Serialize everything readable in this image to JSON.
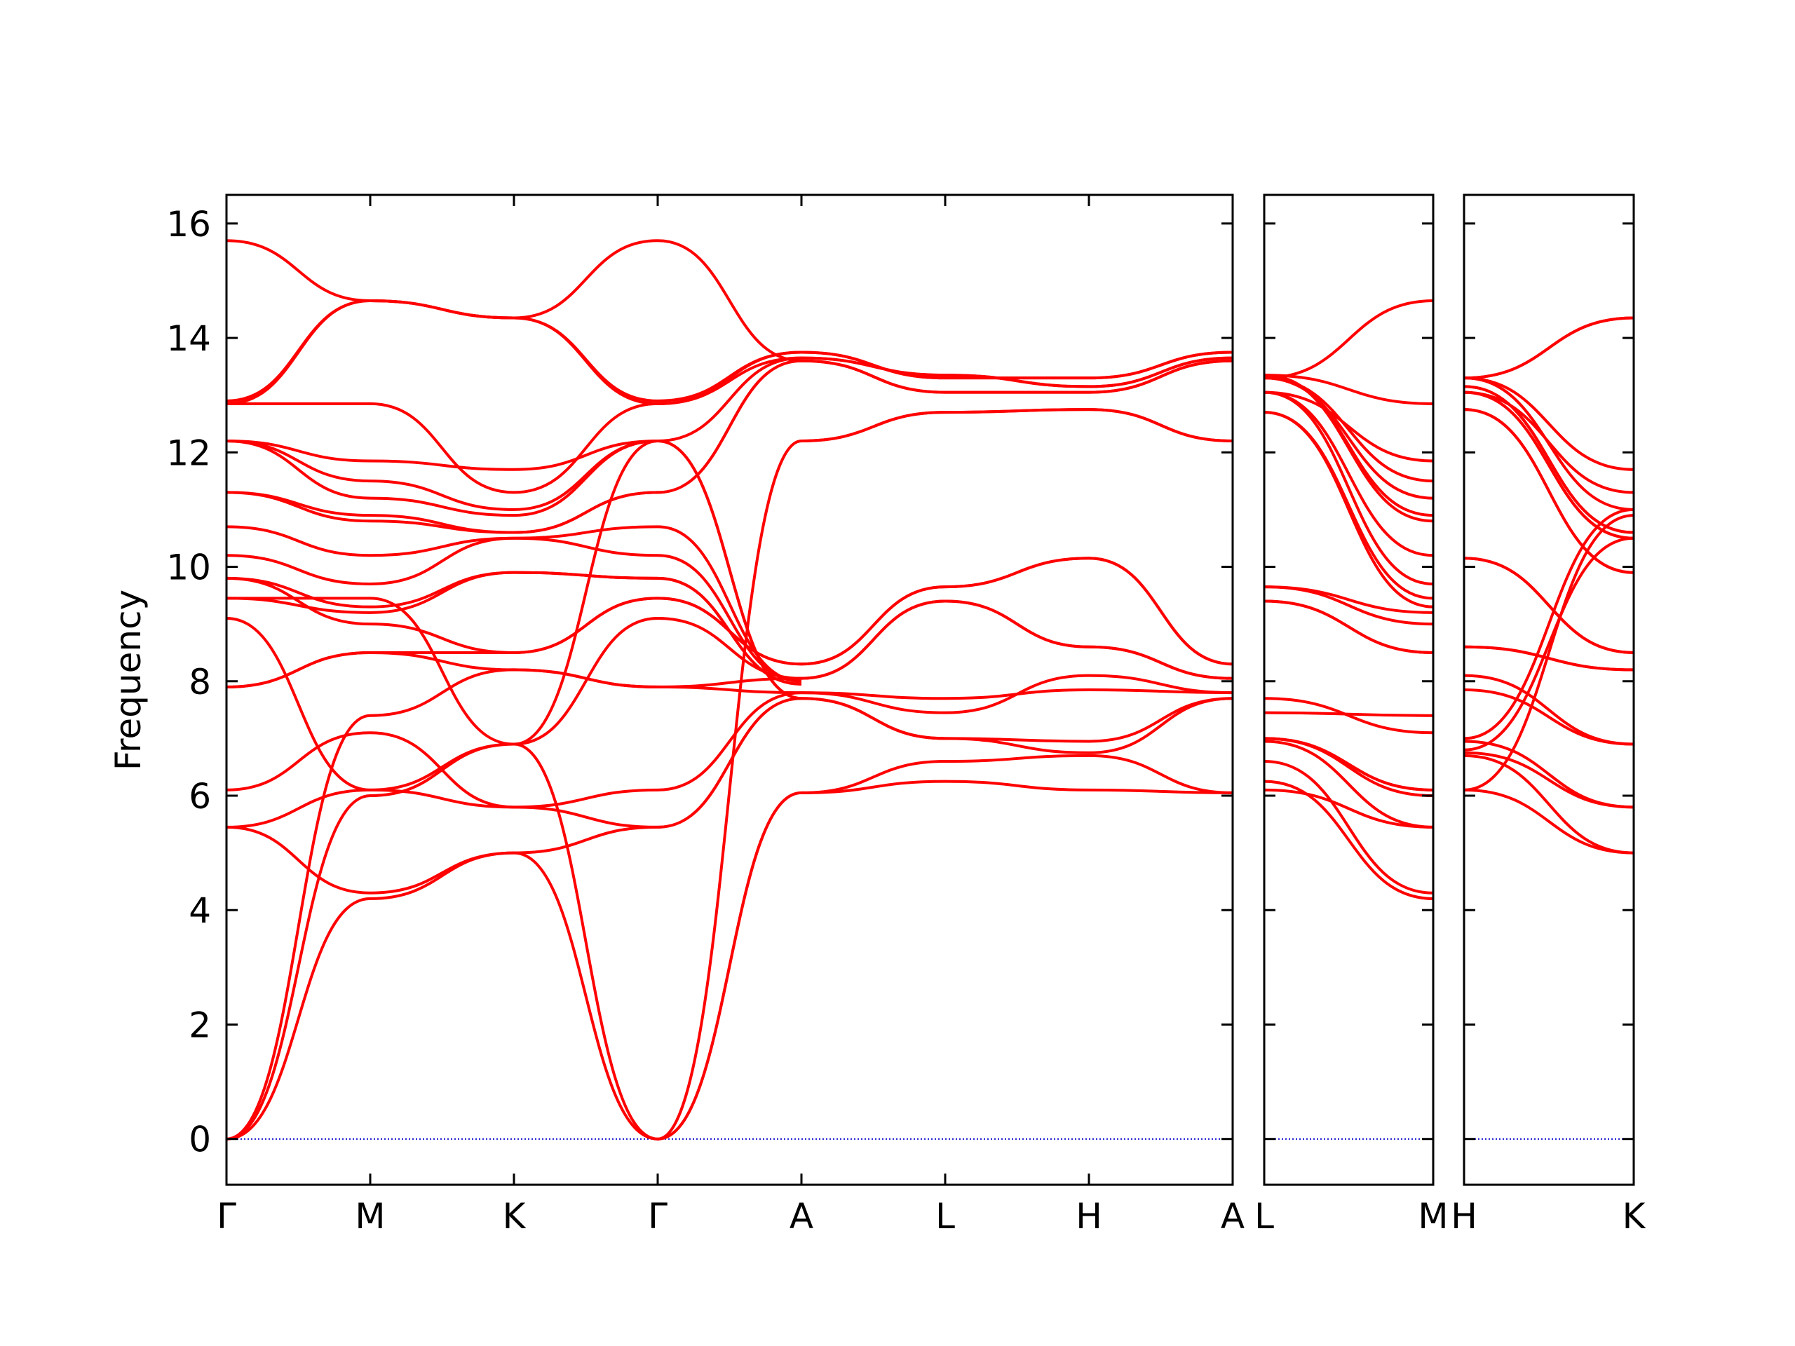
{
  "chart_data": {
    "type": "line",
    "ylabel": "Frequency",
    "ylim": [
      -0.8,
      16.5
    ],
    "yticks": [
      0,
      2,
      4,
      6,
      8,
      10,
      12,
      14,
      16
    ],
    "colors": {
      "bands": "#ff0000",
      "zero_line": "#0000cc",
      "axes": "#000000"
    },
    "grid": false,
    "panels": [
      {
        "xticks": [
          "Γ",
          "M",
          "K",
          "Γ",
          "A",
          "L",
          "H",
          "A"
        ],
        "segments": [
          {
            "from": "Γ",
            "to": "M",
            "bands": [
              [
                0,
                4.2
              ],
              [
                0,
                6.0
              ],
              [
                0,
                7.4
              ],
              [
                5.45,
                4.3
              ],
              [
                5.45,
                6.1
              ],
              [
                6.1,
                7.1
              ],
              [
                7.9,
                8.5
              ],
              [
                7.9,
                8.5
              ],
              [
                9.1,
                6.1
              ],
              [
                9.45,
                9.45
              ],
              [
                9.45,
                9.2
              ],
              [
                9.8,
                9.0
              ],
              [
                9.8,
                9.3
              ],
              [
                10.2,
                9.7
              ],
              [
                10.7,
                10.2
              ],
              [
                11.3,
                10.9
              ],
              [
                11.3,
                10.8
              ],
              [
                12.2,
                11.2
              ],
              [
                12.2,
                11.5
              ],
              [
                12.2,
                11.85
              ],
              [
                12.85,
                12.85
              ],
              [
                12.85,
                14.65
              ],
              [
                12.9,
                14.65
              ],
              [
                15.7,
                14.65
              ]
            ]
          },
          {
            "from": "M",
            "to": "K",
            "bands": [
              [
                4.2,
                5.0
              ],
              [
                4.3,
                5.0
              ],
              [
                6.0,
                6.9
              ],
              [
                6.1,
                6.9
              ],
              [
                6.1,
                5.8
              ],
              [
                7.1,
                5.8
              ],
              [
                7.4,
                8.2
              ],
              [
                8.5,
                8.2
              ],
              [
                8.5,
                8.5
              ],
              [
                9.0,
                8.5
              ],
              [
                9.2,
                9.9
              ],
              [
                9.3,
                9.9
              ],
              [
                9.45,
                6.9
              ],
              [
                9.7,
                10.5
              ],
              [
                10.2,
                10.5
              ],
              [
                10.9,
                10.6
              ],
              [
                10.8,
                10.6
              ],
              [
                11.2,
                10.9
              ],
              [
                11.5,
                11.0
              ],
              [
                11.85,
                11.7
              ],
              [
                12.85,
                11.3
              ],
              [
                14.65,
                14.35
              ],
              [
                14.65,
                14.35
              ],
              [
                14.65,
                14.35
              ]
            ]
          },
          {
            "from": "K",
            "to": "Γ",
            "bands": [
              [
                5.0,
                0
              ],
              [
                5.0,
                5.45
              ],
              [
                6.9,
                0
              ],
              [
                6.9,
                9.1
              ],
              [
                5.8,
                5.45
              ],
              [
                5.8,
                6.1
              ],
              [
                8.2,
                7.9
              ],
              [
                8.2,
                7.9
              ],
              [
                8.5,
                9.45
              ],
              [
                8.5,
                9.45
              ],
              [
                9.9,
                9.8
              ],
              [
                9.9,
                9.8
              ],
              [
                6.9,
                12.2
              ],
              [
                10.5,
                10.2
              ],
              [
                10.5,
                10.7
              ],
              [
                10.6,
                11.3
              ],
              [
                10.6,
                11.3
              ],
              [
                10.9,
                12.2
              ],
              [
                11.0,
                12.2
              ],
              [
                11.7,
                12.2
              ],
              [
                11.3,
                12.85
              ],
              [
                14.35,
                12.85
              ],
              [
                14.35,
                12.9
              ],
              [
                14.35,
                15.7
              ]
            ]
          },
          {
            "from": "Γ",
            "to": "A",
            "bands": [
              [
                0,
                6.05
              ],
              [
                0,
                6.05
              ],
              [
                0,
                12.2
              ],
              [
                5.45,
                7.7
              ],
              [
                5.45,
                7.7
              ],
              [
                6.1,
                7.8
              ],
              [
                7.9,
                7.8
              ],
              [
                7.9,
                8.05
              ],
              [
                9.1,
                8.05
              ],
              [
                9.45,
                8.3
              ],
              [
                9.45,
                8.3
              ],
              [
                9.8,
                7.95
              ],
              [
                9.8,
                7.95
              ],
              [
                10.2,
                8.0
              ],
              [
                10.7,
                8.0
              ],
              [
                11.3,
                13.6
              ],
              [
                11.3,
                13.6
              ],
              [
                12.2,
                7.7
              ],
              [
                12.2,
                7.7
              ],
              [
                12.2,
                13.65
              ],
              [
                12.85,
                13.65
              ],
              [
                12.85,
                13.75
              ],
              [
                12.9,
                13.75
              ],
              [
                15.7,
                13.6
              ]
            ]
          },
          {
            "from": "A",
            "to": "L",
            "bands": [
              [
                6.05,
                6.25
              ],
              [
                6.05,
                6.6
              ],
              [
                7.7,
                7.0
              ],
              [
                7.7,
                7.0
              ],
              [
                7.8,
                7.7
              ],
              [
                7.8,
                7.45
              ],
              [
                8.05,
                9.4
              ],
              [
                8.05,
                9.4
              ],
              [
                8.3,
                9.65
              ],
              [
                8.3,
                9.65
              ],
              [
                12.2,
                12.7
              ],
              [
                12.2,
                12.7
              ],
              [
                13.6,
                13.05
              ],
              [
                13.6,
                13.05
              ],
              [
                13.65,
                13.35
              ],
              [
                13.65,
                13.35
              ],
              [
                13.75,
                13.3
              ],
              [
                13.75,
                13.3
              ]
            ]
          },
          {
            "from": "L",
            "to": "H",
            "bands": [
              [
                6.25,
                6.1
              ],
              [
                6.6,
                6.7
              ],
              [
                7.0,
                6.95
              ],
              [
                7.0,
                6.75
              ],
              [
                7.7,
                7.85
              ],
              [
                7.45,
                8.1
              ],
              [
                9.4,
                8.6
              ],
              [
                9.4,
                8.6
              ],
              [
                9.65,
                10.15
              ],
              [
                9.65,
                10.15
              ],
              [
                12.7,
                12.75
              ],
              [
                12.7,
                12.75
              ],
              [
                13.05,
                13.05
              ],
              [
                13.05,
                13.05
              ],
              [
                13.35,
                13.15
              ],
              [
                13.35,
                13.15
              ],
              [
                13.3,
                13.3
              ],
              [
                13.3,
                13.3
              ]
            ]
          },
          {
            "from": "H",
            "to": "A",
            "bands": [
              [
                6.1,
                6.05
              ],
              [
                6.7,
                6.05
              ],
              [
                6.95,
                7.7
              ],
              [
                6.75,
                7.7
              ],
              [
                7.85,
                7.8
              ],
              [
                8.1,
                7.8
              ],
              [
                8.6,
                8.05
              ],
              [
                8.6,
                8.05
              ],
              [
                10.15,
                8.3
              ],
              [
                10.15,
                8.3
              ],
              [
                12.75,
                12.2
              ],
              [
                12.75,
                12.2
              ],
              [
                13.05,
                13.6
              ],
              [
                13.05,
                13.6
              ],
              [
                13.15,
                13.65
              ],
              [
                13.15,
                13.65
              ],
              [
                13.3,
                13.75
              ],
              [
                13.3,
                13.75
              ]
            ]
          }
        ]
      },
      {
        "xticks": [
          "L",
          "M"
        ],
        "segments": [
          {
            "from": "L",
            "to": "M",
            "bands": [
              [
                6.25,
                4.2
              ],
              [
                6.6,
                4.3
              ],
              [
                7.0,
                6.0
              ],
              [
                7.0,
                6.1
              ],
              [
                7.7,
                7.1
              ],
              [
                7.45,
                7.4
              ],
              [
                9.4,
                8.5
              ],
              [
                9.4,
                8.5
              ],
              [
                9.65,
                9.0
              ],
              [
                9.65,
                9.2
              ],
              [
                12.7,
                9.3
              ],
              [
                12.7,
                9.45
              ],
              [
                13.05,
                9.7
              ],
              [
                13.05,
                10.2
              ],
              [
                13.35,
                10.8
              ],
              [
                13.35,
                10.9
              ],
              [
                13.3,
                11.2
              ],
              [
                13.3,
                11.5
              ],
              [
                13.05,
                11.85
              ],
              [
                13.35,
                12.85
              ],
              [
                13.3,
                14.65
              ],
              [
                6.1,
                5.45
              ],
              [
                6.95,
                5.45
              ],
              [
                7.0,
                6.1
              ]
            ]
          }
        ]
      },
      {
        "xticks": [
          "H",
          "K"
        ],
        "segments": [
          {
            "from": "H",
            "to": "K",
            "bands": [
              [
                6.1,
                5.0
              ],
              [
                6.7,
                5.0
              ],
              [
                6.95,
                5.8
              ],
              [
                6.75,
                5.8
              ],
              [
                7.85,
                6.9
              ],
              [
                8.1,
                6.9
              ],
              [
                8.6,
                8.2
              ],
              [
                8.6,
                8.2
              ],
              [
                10.15,
                8.5
              ],
              [
                10.15,
                8.5
              ],
              [
                12.75,
                9.9
              ],
              [
                12.75,
                9.9
              ],
              [
                13.05,
                10.5
              ],
              [
                13.05,
                10.5
              ],
              [
                13.15,
                10.6
              ],
              [
                13.15,
                10.6
              ],
              [
                13.3,
                11.0
              ],
              [
                13.3,
                11.7
              ],
              [
                13.05,
                11.3
              ],
              [
                13.3,
                14.35
              ],
              [
                13.3,
                14.35
              ],
              [
                6.1,
                10.9
              ],
              [
                6.8,
                10.5
              ],
              [
                7.0,
                11.0
              ]
            ]
          }
        ]
      }
    ]
  }
}
